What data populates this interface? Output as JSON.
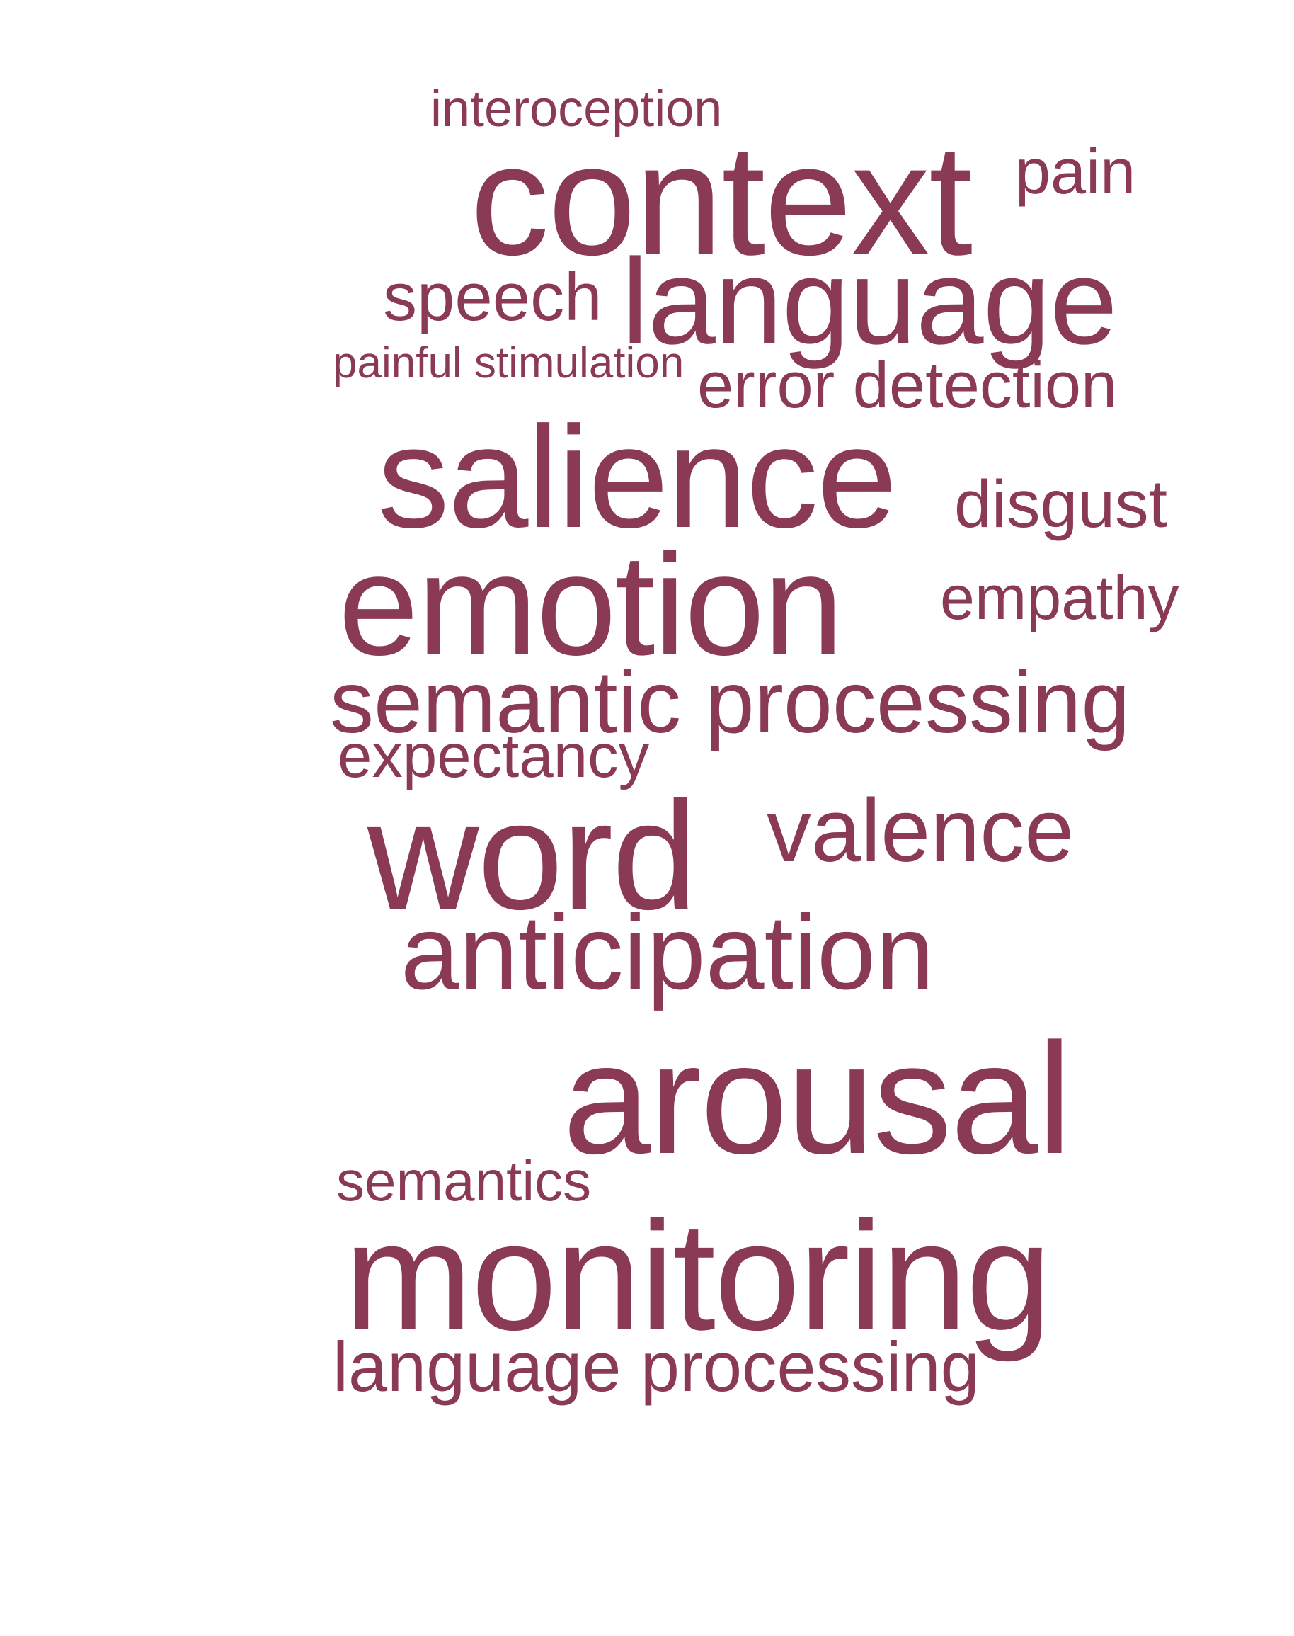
{
  "colors": {
    "background": "#ffffff",
    "word": "#8b3a56"
  },
  "words": [
    {
      "key": "interoception",
      "text": "interoception"
    },
    {
      "key": "context",
      "text": "context"
    },
    {
      "key": "pain",
      "text": "pain"
    },
    {
      "key": "speech",
      "text": "speech"
    },
    {
      "key": "language",
      "text": "language"
    },
    {
      "key": "painful-stimulation",
      "text": "painful stimulation"
    },
    {
      "key": "error-detection",
      "text": "error detection"
    },
    {
      "key": "salience",
      "text": "salience"
    },
    {
      "key": "disgust",
      "text": "disgust"
    },
    {
      "key": "emotion",
      "text": "emotion"
    },
    {
      "key": "empathy",
      "text": "empathy"
    },
    {
      "key": "semantic-processing",
      "text": "semantic processing"
    },
    {
      "key": "expectancy",
      "text": "expectancy"
    },
    {
      "key": "word",
      "text": "word"
    },
    {
      "key": "valence",
      "text": "valence"
    },
    {
      "key": "anticipation",
      "text": "anticipation"
    },
    {
      "key": "arousal",
      "text": "arousal"
    },
    {
      "key": "semantics",
      "text": "semantics"
    },
    {
      "key": "monitoring",
      "text": "monitoring"
    },
    {
      "key": "language-processing",
      "text": "language processing"
    }
  ]
}
